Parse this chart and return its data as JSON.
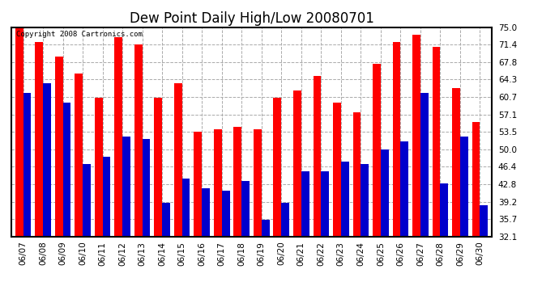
{
  "title": "Dew Point Daily High/Low 20080701",
  "copyright": "Copyright 2008 Cartronics.com",
  "dates": [
    "06/07",
    "06/08",
    "06/09",
    "06/10",
    "06/11",
    "06/12",
    "06/13",
    "06/14",
    "06/15",
    "06/16",
    "06/17",
    "06/18",
    "06/19",
    "06/20",
    "06/21",
    "06/22",
    "06/23",
    "06/24",
    "06/25",
    "06/26",
    "06/27",
    "06/28",
    "06/29",
    "06/30"
  ],
  "highs": [
    75.0,
    72.0,
    69.0,
    65.5,
    60.5,
    73.0,
    71.5,
    60.5,
    63.5,
    53.5,
    54.0,
    54.5,
    54.0,
    60.5,
    62.0,
    65.0,
    59.5,
    57.5,
    67.5,
    72.0,
    73.5,
    71.0,
    62.5,
    55.5
  ],
  "lows": [
    61.5,
    63.5,
    59.5,
    47.0,
    48.5,
    52.5,
    52.0,
    39.0,
    44.0,
    42.0,
    41.5,
    43.5,
    35.5,
    39.0,
    45.5,
    45.5,
    47.5,
    47.0,
    50.0,
    51.5,
    61.5,
    43.0,
    52.5,
    38.5
  ],
  "ymin": 32.1,
  "ymax": 75.0,
  "yticks": [
    32.1,
    35.7,
    39.2,
    42.8,
    46.4,
    50.0,
    53.5,
    57.1,
    60.7,
    64.3,
    67.8,
    71.4,
    75.0
  ],
  "high_color": "#ff0000",
  "low_color": "#0000cc",
  "background_color": "#ffffff",
  "grid_color": "#aaaaaa",
  "title_fontsize": 12,
  "tick_fontsize": 7.5,
  "bar_width": 0.4
}
